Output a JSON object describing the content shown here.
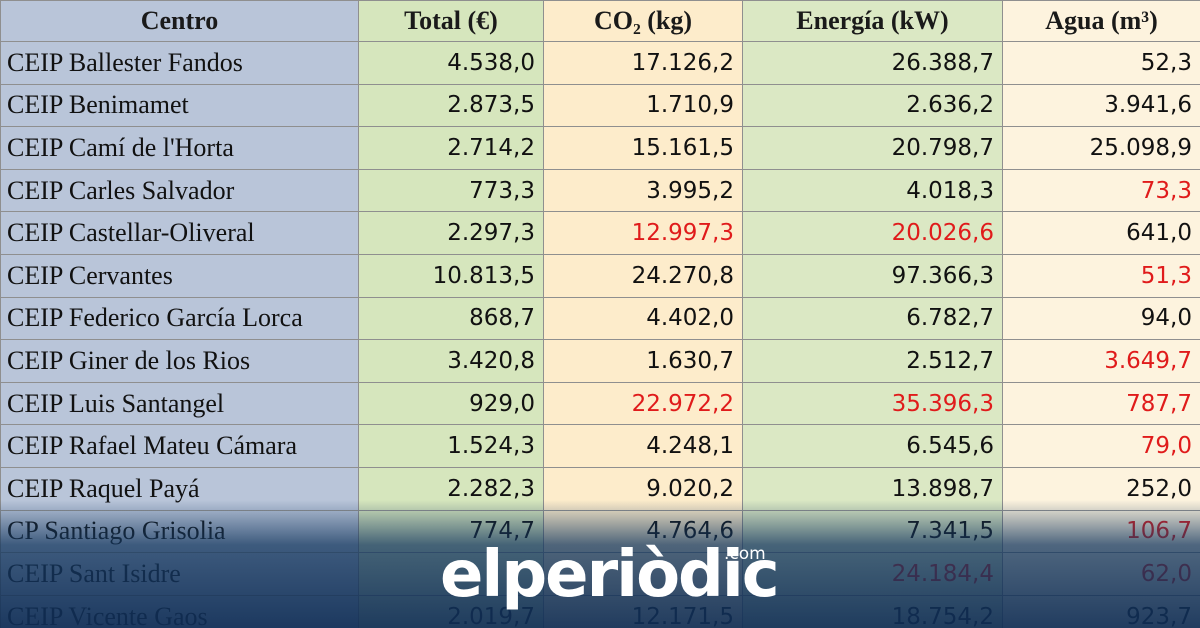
{
  "table": {
    "header": [
      "Centro",
      "Total (€)",
      "CO₂ (kg)",
      "Energía (kW)",
      "Agua (m³)"
    ],
    "rows": [
      {
        "cells": [
          "CEIP Ballester Fandos",
          "4.538,0",
          "17.126,2",
          "26.388,7",
          "52,3"
        ],
        "red": []
      },
      {
        "cells": [
          "CEIP Benimamet",
          "2.873,5",
          "1.710,9",
          "2.636,2",
          "3.941,6"
        ],
        "red": []
      },
      {
        "cells": [
          "CEIP Camí de l'Horta",
          "2.714,2",
          "15.161,5",
          "20.798,7",
          "25.098,9"
        ],
        "red": []
      },
      {
        "cells": [
          "CEIP Carles Salvador",
          "773,3",
          "3.995,2",
          "4.018,3",
          "73,3"
        ],
        "red": [
          4
        ]
      },
      {
        "cells": [
          "CEIP Castellar-Oliveral",
          "2.297,3",
          "12.997,3",
          "20.026,6",
          "641,0"
        ],
        "red": [
          2,
          3
        ]
      },
      {
        "cells": [
          "CEIP Cervantes",
          "10.813,5",
          "24.270,8",
          "97.366,3",
          "51,3"
        ],
        "red": [
          4
        ]
      },
      {
        "cells": [
          "CEIP Federico García Lorca",
          "868,7",
          "4.402,0",
          "6.782,7",
          "94,0"
        ],
        "red": []
      },
      {
        "cells": [
          "CEIP Giner de los Rios",
          "3.420,8",
          "1.630,7",
          "2.512,7",
          "3.649,7"
        ],
        "red": [
          4
        ]
      },
      {
        "cells": [
          "CEIP Luis Santangel",
          "929,0",
          "22.972,2",
          "35.396,3",
          "787,7"
        ],
        "red": [
          2,
          3,
          4
        ]
      },
      {
        "cells": [
          "CEIP Rafael Mateu Cámara",
          "1.524,3",
          "4.248,1",
          "6.545,6",
          "79,0"
        ],
        "red": [
          4
        ]
      },
      {
        "cells": [
          "CEIP Raquel Payá",
          "2.282,3",
          "9.020,2",
          "13.898,7",
          "252,0"
        ],
        "red": []
      },
      {
        "cells": [
          "CP Santiago Grisolia",
          "774,7",
          "4.764,6",
          "7.341,5",
          "106,7"
        ],
        "red": [
          4
        ]
      },
      {
        "cells": [
          "CEIP Sant Isidre",
          null,
          null,
          "24.184,4",
          "62,0"
        ],
        "red": [
          3,
          4
        ]
      },
      {
        "cells": [
          "CEIP Vicente Gaos",
          "2.019,7",
          "12.171,5",
          "18.754,2",
          "923,7"
        ],
        "red": []
      }
    ]
  },
  "logo": {
    "text": "elperiòdic",
    "suffix": ".com"
  }
}
